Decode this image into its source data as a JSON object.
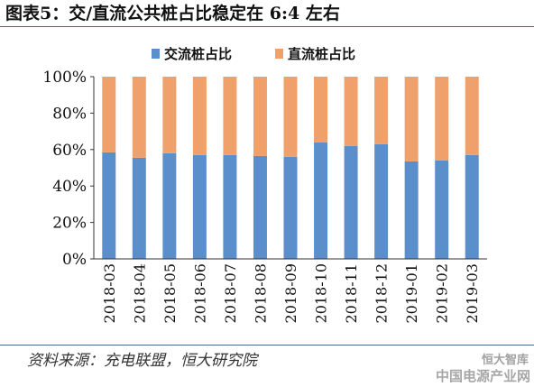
{
  "chart_data": {
    "type": "bar",
    "stacked": true,
    "title": "图表5：交/直流公共桩占比稳定在 6:4 左右",
    "categories": [
      "2018-03",
      "2018-04",
      "2018-05",
      "2018-06",
      "2018-07",
      "2018-08",
      "2018-09",
      "2018-10",
      "2018-11",
      "2018-12",
      "2019-01",
      "2019-02",
      "2019-03"
    ],
    "series": [
      {
        "name": "交流桩占比",
        "color": "#5b8fcb",
        "values": [
          58.5,
          55.5,
          58,
          57,
          57,
          56.5,
          56,
          64,
          62,
          63,
          53.5,
          54,
          57
        ]
      },
      {
        "name": "直流桩占比",
        "color": "#f0a06b",
        "values": [
          41.5,
          44.5,
          42,
          43,
          43,
          43.5,
          44,
          36,
          38,
          37,
          46.5,
          46,
          43
        ]
      }
    ],
    "ylim": [
      0,
      100
    ],
    "yticks": [
      "0%",
      "20%",
      "40%",
      "60%",
      "80%",
      "100%"
    ],
    "grid": false,
    "legend": "top-center"
  },
  "source": "资料来源：充电联盟，恒大研究院",
  "watermark": {
    "brand": "恒大智库",
    "site": "中国电源产业网"
  }
}
